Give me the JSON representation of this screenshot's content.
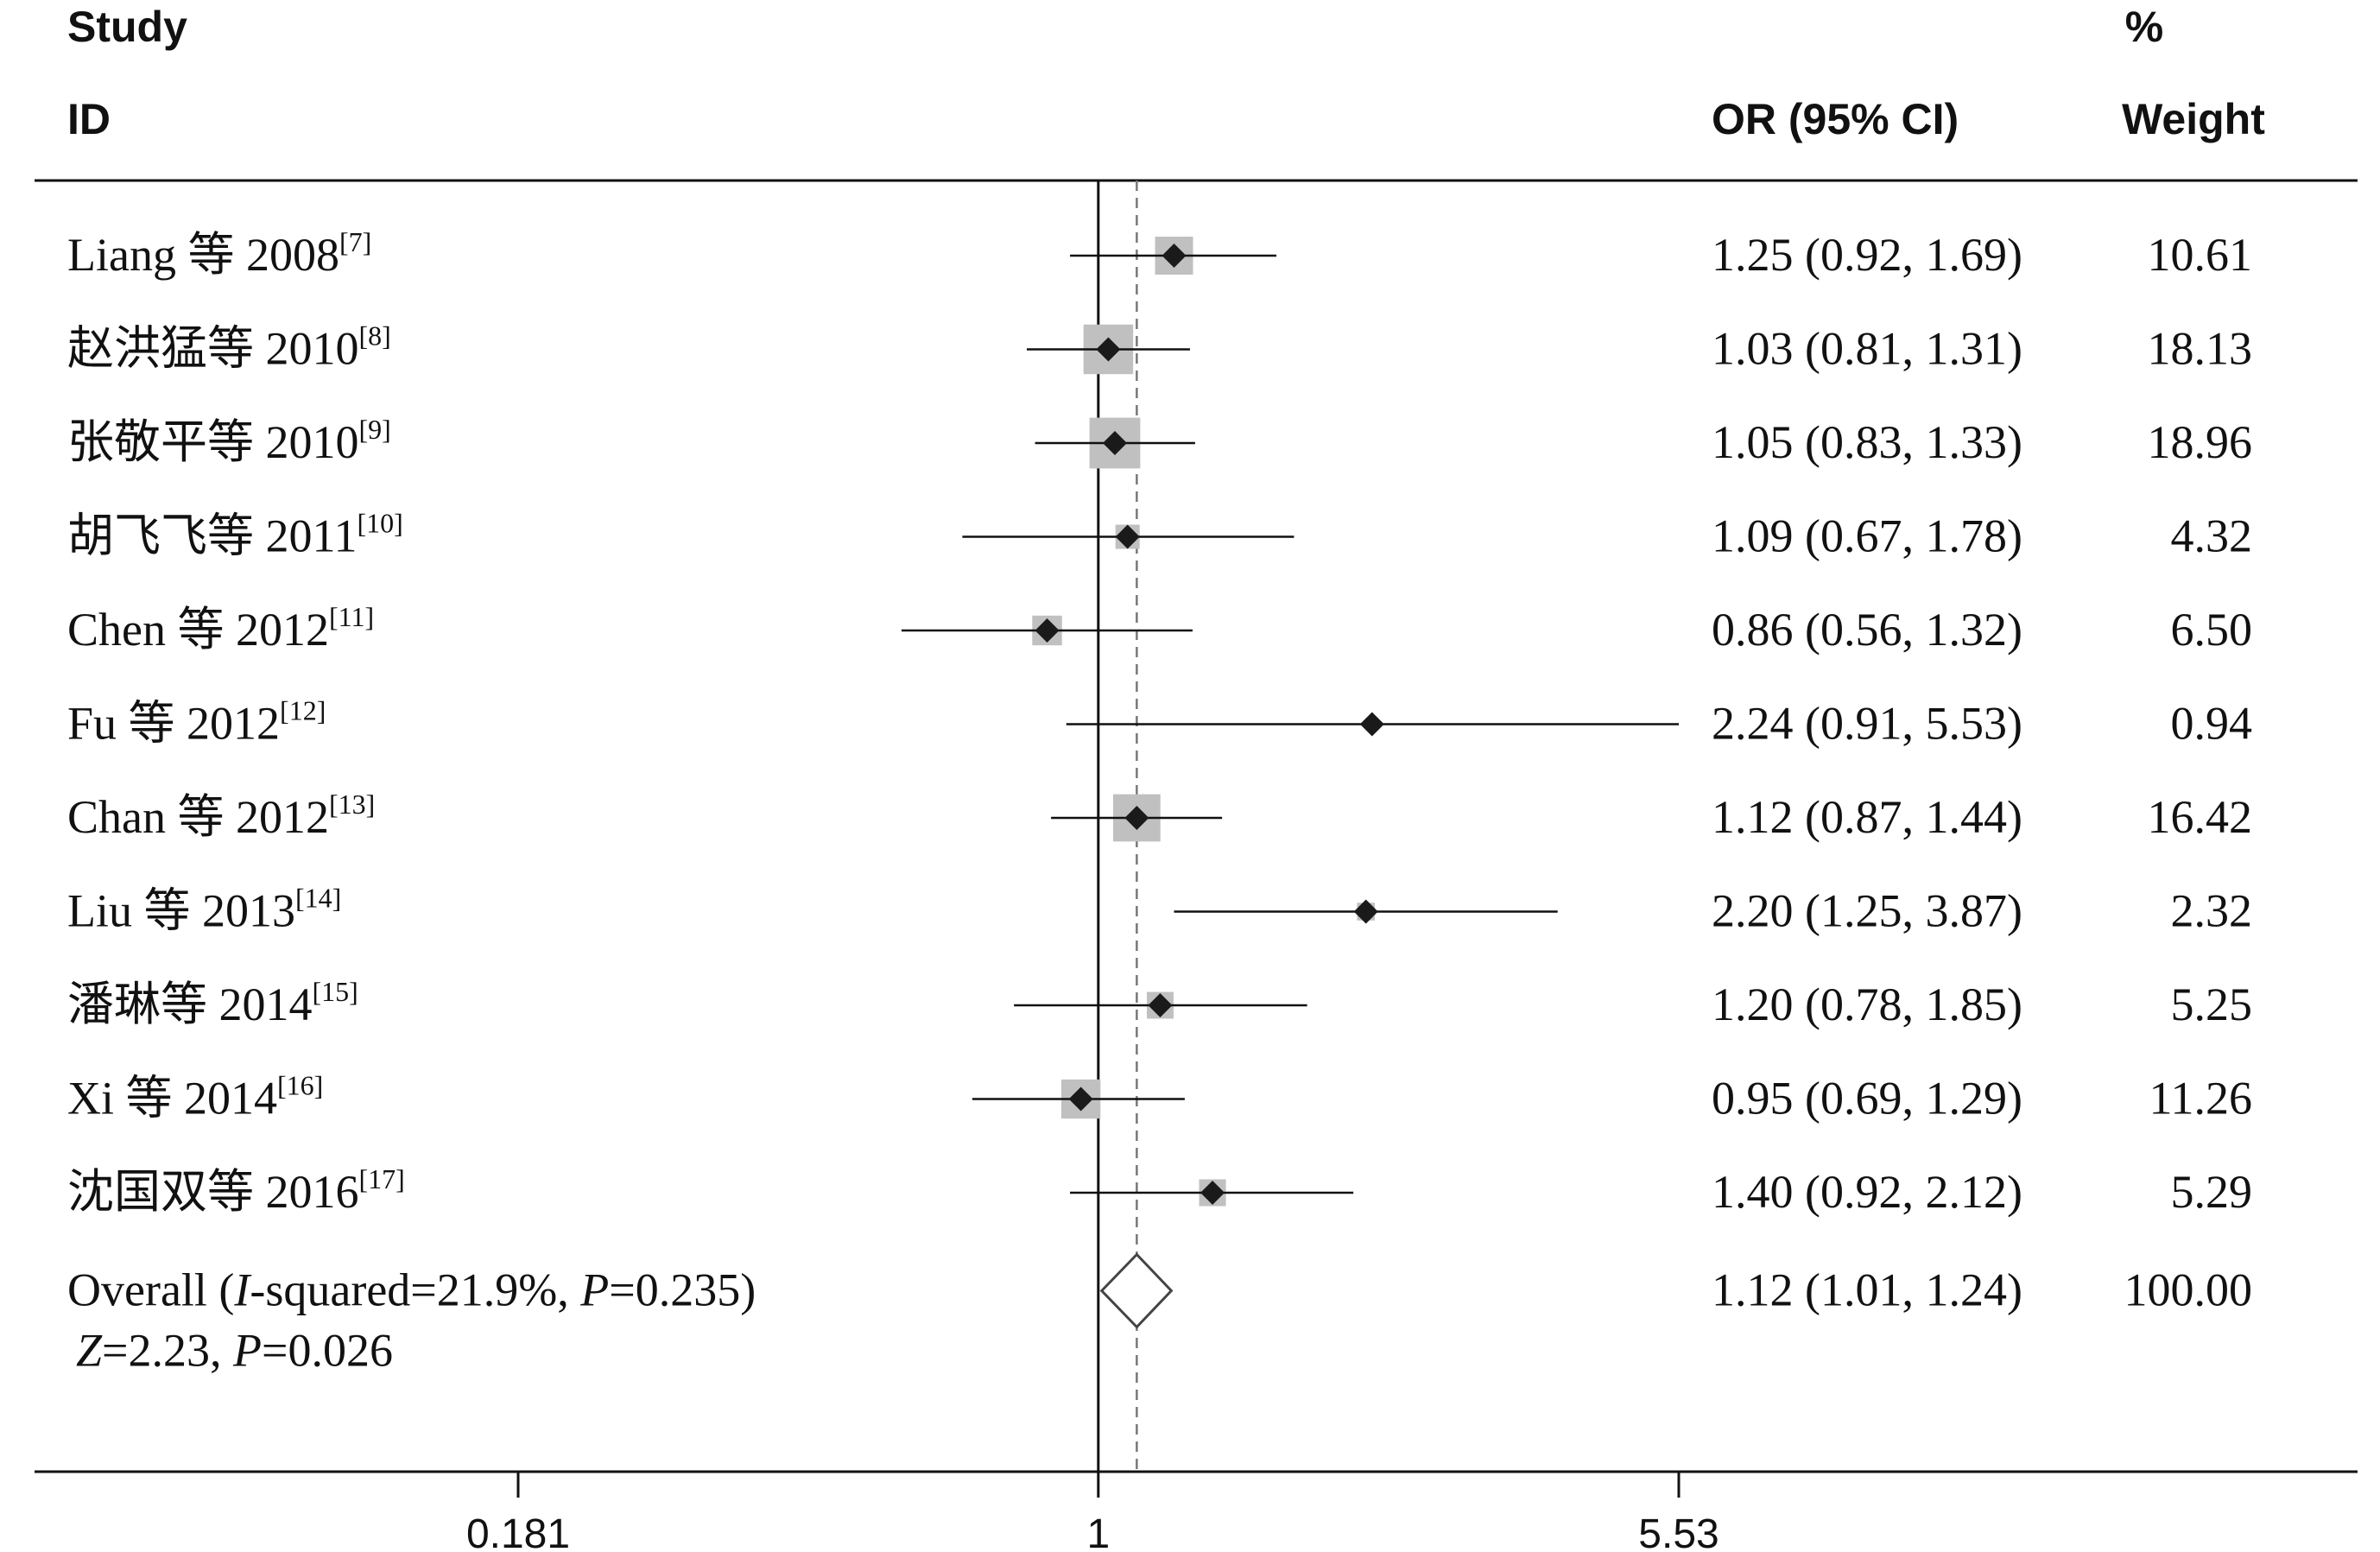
{
  "headers": {
    "study_top": "Study",
    "study_bottom": "ID",
    "or": "OR (95% CI)",
    "weight_top": "%",
    "weight_bottom": "Weight"
  },
  "chart_data": {
    "type": "forest",
    "x_scale": "log",
    "xlim": [
      0.181,
      5.53
    ],
    "x_ticks": [
      "0.181",
      "1",
      "5.53"
    ],
    "null_line": 1,
    "pooled_line": 1.12,
    "colors": {
      "box": "#c0c0c0",
      "point": "#1a1a1a",
      "line": "#111111",
      "pooled_line": "#777777"
    },
    "studies": [
      {
        "name": "Liang 等 2008",
        "ref": "[7]",
        "or": 1.25,
        "lo": 0.92,
        "hi": 1.69,
        "or_text": "1.25 (0.92, 1.69)",
        "weight": 10.61,
        "weight_text": "10.61"
      },
      {
        "name": "赵洪猛等 2010",
        "ref": "[8]",
        "or": 1.03,
        "lo": 0.81,
        "hi": 1.31,
        "or_text": "1.03 (0.81, 1.31)",
        "weight": 18.13,
        "weight_text": "18.13"
      },
      {
        "name": "张敬平等 2010",
        "ref": "[9]",
        "or": 1.05,
        "lo": 0.83,
        "hi": 1.33,
        "or_text": "1.05 (0.83, 1.33)",
        "weight": 18.96,
        "weight_text": "18.96"
      },
      {
        "name": "胡飞飞等 2011",
        "ref": "[10]",
        "or": 1.09,
        "lo": 0.67,
        "hi": 1.78,
        "or_text": "1.09 (0.67, 1.78)",
        "weight": 4.32,
        "weight_text": "4.32"
      },
      {
        "name": "Chen 等 2012",
        "ref": "[11]",
        "or": 0.86,
        "lo": 0.56,
        "hi": 1.32,
        "or_text": "0.86 (0.56, 1.32)",
        "weight": 6.5,
        "weight_text": "6.50"
      },
      {
        "name": "Fu 等 2012",
        "ref": "[12]",
        "or": 2.24,
        "lo": 0.91,
        "hi": 5.53,
        "or_text": "2.24 (0.91, 5.53)",
        "weight": 0.94,
        "weight_text": "0.94"
      },
      {
        "name": "Chan 等 2012",
        "ref": "[13]",
        "or": 1.12,
        "lo": 0.87,
        "hi": 1.44,
        "or_text": "1.12 (0.87, 1.44)",
        "weight": 16.42,
        "weight_text": "16.42"
      },
      {
        "name": "Liu 等 2013",
        "ref": "[14]",
        "or": 2.2,
        "lo": 1.25,
        "hi": 3.87,
        "or_text": "2.20 (1.25, 3.87)",
        "weight": 2.32,
        "weight_text": "2.32"
      },
      {
        "name": "潘琳等 2014",
        "ref": "[15]",
        "or": 1.2,
        "lo": 0.78,
        "hi": 1.85,
        "or_text": "1.20 (0.78, 1.85)",
        "weight": 5.25,
        "weight_text": "5.25"
      },
      {
        "name": "Xi 等 2014",
        "ref": "[16]",
        "or": 0.95,
        "lo": 0.69,
        "hi": 1.29,
        "or_text": "0.95 (0.69, 1.29)",
        "weight": 11.26,
        "weight_text": "11.26"
      },
      {
        "name": "沈国双等 2016",
        "ref": "[17]",
        "or": 1.4,
        "lo": 0.92,
        "hi": 2.12,
        "or_text": "1.40 (0.92, 2.12)",
        "weight": 5.29,
        "weight_text": "5.29"
      }
    ],
    "overall": {
      "line1_prefix": "Overall (",
      "line1_i": "I",
      "line1_mid": "-squared=21.9%, ",
      "line1_p": "P",
      "line1_end": "=0.235)",
      "line2_z": "Z",
      "line2_mid": "=2.23, ",
      "line2_p": "P",
      "line2_end": "=0.026",
      "or": 1.12,
      "lo": 1.01,
      "hi": 1.24,
      "or_text": "1.12 (1.01, 1.24)",
      "weight_text": "100.00"
    }
  }
}
